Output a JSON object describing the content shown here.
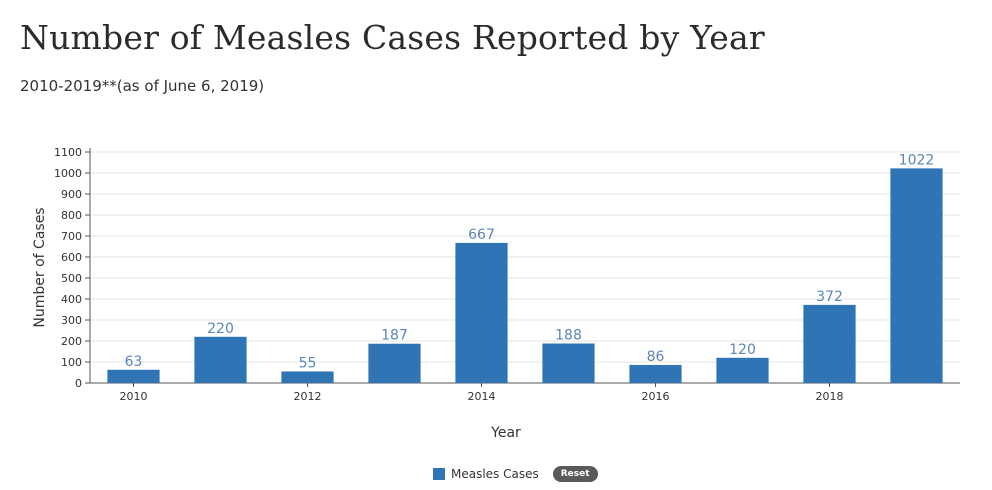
{
  "header": {
    "title": "Number of Measles Cases Reported by Year",
    "subtitle": "2010-2019**(as of June 6, 2019)"
  },
  "legend": {
    "series_label": "Measles Cases",
    "reset_label": "Reset"
  },
  "colors": {
    "bar": "#2f74b5",
    "data_label": "#5b86b8",
    "grid": "#e6e6e6",
    "axis": "#555555"
  },
  "chart_data": {
    "type": "bar",
    "categories": [
      "2010",
      "2011",
      "2012",
      "2013",
      "2014",
      "2015",
      "2016",
      "2017",
      "2018",
      "2019"
    ],
    "x_tick_labels": [
      "2010",
      "2012",
      "2014",
      "2016",
      "2018"
    ],
    "values": [
      63,
      220,
      55,
      187,
      667,
      188,
      86,
      120,
      372,
      1022
    ],
    "data_labels": [
      "63",
      "220",
      "55",
      "187",
      "667",
      "188",
      "86",
      "120",
      "372",
      "1022"
    ],
    "xlabel": "Year",
    "ylabel": "Number of Cases",
    "ylim": [
      0,
      1100
    ],
    "y_ticks": [
      0,
      100,
      200,
      300,
      400,
      500,
      600,
      700,
      800,
      900,
      1000,
      1100
    ],
    "grid": true,
    "legend_position": "bottom-center",
    "series": [
      {
        "name": "Measles Cases",
        "values": [
          63,
          220,
          55,
          187,
          667,
          188,
          86,
          120,
          372,
          1022
        ]
      }
    ]
  }
}
